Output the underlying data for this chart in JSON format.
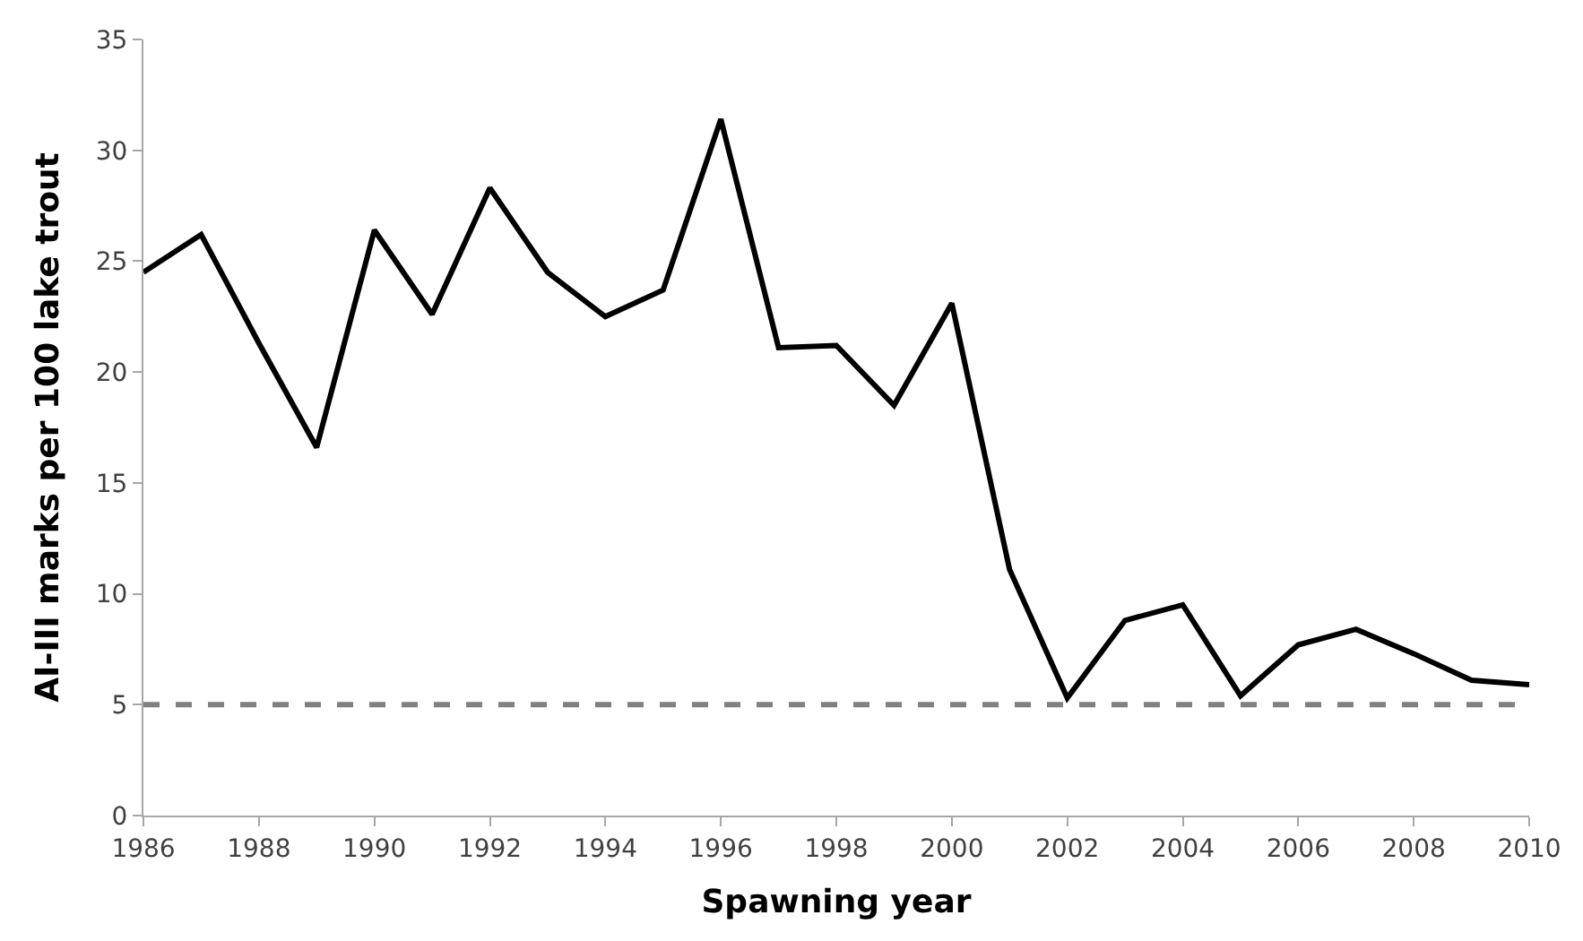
{
  "chart_data": {
    "type": "line",
    "xlabel": "Spawning year",
    "ylabel": "AI-III marks per 100 lake trout",
    "x": [
      1986,
      1987,
      1988,
      1989,
      1990,
      1991,
      1992,
      1993,
      1994,
      1995,
      1996,
      1997,
      1998,
      1999,
      2000,
      2001,
      2002,
      2003,
      2004,
      2005,
      2006,
      2007,
      2008,
      2009,
      2010
    ],
    "series": [
      {
        "color": "#000000",
        "values": [
          24.5,
          26.2,
          21.3,
          16.6,
          26.4,
          22.6,
          28.3,
          24.5,
          22.5,
          23.7,
          31.4,
          21.1,
          21.2,
          18.5,
          23.1,
          11.1,
          5.3,
          8.8,
          9.5,
          5.4,
          7.7,
          8.4,
          7.3,
          6.1,
          5.9
        ]
      }
    ],
    "xlim": [
      1986,
      2010
    ],
    "xticks": [
      1986,
      1988,
      1990,
      1992,
      1994,
      1996,
      1998,
      2000,
      2002,
      2004,
      2006,
      2008,
      2010
    ],
    "ylim": [
      0,
      35
    ],
    "yticks": [
      0,
      5,
      10,
      15,
      20,
      25,
      30,
      35
    ],
    "ref_lines": [
      {
        "axis": "y",
        "value": 5,
        "color": "#808080",
        "line_style": "dashed"
      }
    ],
    "legend": false,
    "marker": "none",
    "line_style": "solid"
  }
}
